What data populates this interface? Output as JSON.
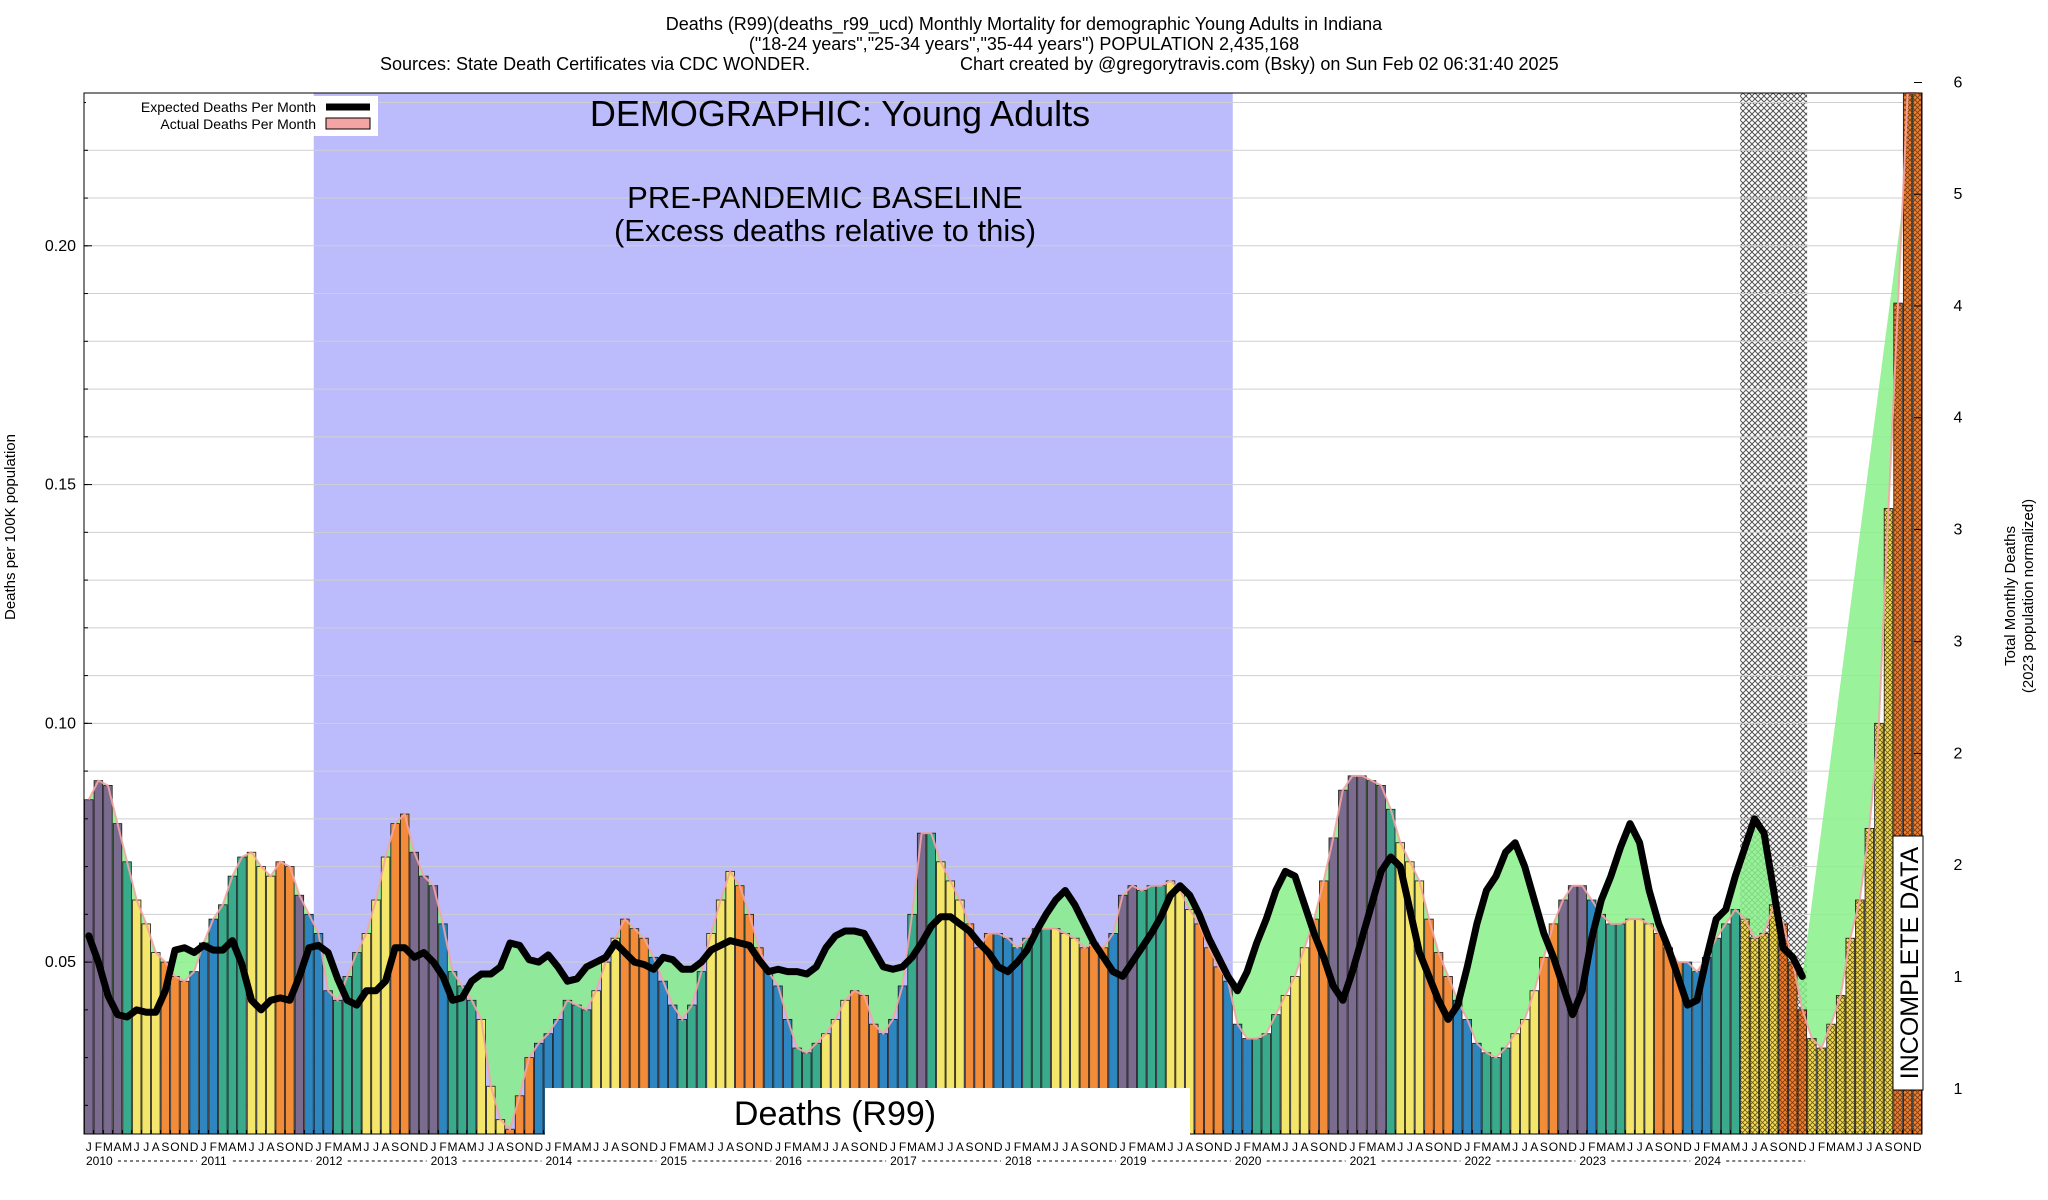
{
  "header": {
    "line1": "Deaths (R99)(deaths_r99_ucd) Monthly Mortality for demographic Young Adults in Indiana",
    "line2": "(\"18-24 years\",\"25-34 years\",\"35-44 years\") POPULATION 2,435,168",
    "line3a": "Sources: State Death Certificates via CDC WONDER.",
    "line3b": "Chart created by @gregorytravis.com (Bsky) on Sun Feb 02 06:31:40 2025"
  },
  "annotations": {
    "demographic": "DEMOGRAPHIC: Young Adults",
    "baseline1": "PRE-PANDEMIC BASELINE",
    "baseline2": "(Excess deaths relative to this)",
    "cause": "Deaths (R99)",
    "incomplete": "INCOMPLETE DATA"
  },
  "legend": {
    "expected": "Expected Deaths Per Month",
    "actual": "Actual Deaths Per Month"
  },
  "colors": {
    "baseline_shade": "#bcbcfc",
    "excess_fill": "#88f088",
    "deficit_fill": "#88f088",
    "expected_line": "#000000",
    "actual_area": "#f4a4a4",
    "winter": "#2e86c1",
    "spring": "#3aaa8c",
    "summer": "#f4e66a",
    "fall": "#f28c38",
    "mixed": "#7b6b8e"
  },
  "chart_data": {
    "type": "bar",
    "title": "Deaths (R99)(deaths_r99_ucd) Monthly Mortality for demographic Young Adults in Indiana",
    "ylabel": "Deaths per 100K population",
    "y2label": "Total Monthly Deaths",
    "y2sublabel": "(2023 population normalized)",
    "ylim": [
      0.014,
      0.232
    ],
    "y_ticks": [
      "0.05",
      "0.10",
      "0.15",
      "0.20"
    ],
    "y_tick_values": [
      0.05,
      0.1,
      0.15,
      0.2
    ],
    "y2_ticks": [
      "1",
      "1",
      "2",
      "2",
      "3",
      "3",
      "4",
      "4",
      "5",
      "6"
    ],
    "y2_tick_values": [
      0.0234,
      0.0469,
      0.0703,
      0.0937,
      0.1171,
      0.1406,
      0.164,
      0.1874,
      0.2108,
      0.2342
    ],
    "years": [
      "2010",
      "2011",
      "2012",
      "2013",
      "2014",
      "2015",
      "2016",
      "2017",
      "2018",
      "2019",
      "2020",
      "2021",
      "2022",
      "2023",
      "2024"
    ],
    "month_letters": [
      "J",
      "F",
      "M",
      "A",
      "M",
      "J",
      "J",
      "A",
      "S",
      "O",
      "N",
      "D"
    ],
    "baseline_period": [
      "2012-01",
      "2019-12"
    ],
    "incomplete_period": [
      "2024-06",
      "2024-12"
    ],
    "grid": true,
    "legend_position": "top-left",
    "actual": [
      0.084,
      0.088,
      0.087,
      0.079,
      0.071,
      0.063,
      0.058,
      0.052,
      0.05,
      0.047,
      0.046,
      0.048,
      0.054,
      0.059,
      0.062,
      0.068,
      0.072,
      0.073,
      0.07,
      0.068,
      0.071,
      0.07,
      0.064,
      0.06,
      0.056,
      0.044,
      0.042,
      0.047,
      0.052,
      0.056,
      0.063,
      0.072,
      0.079,
      0.081,
      0.073,
      0.068,
      0.066,
      0.058,
      0.048,
      0.045,
      0.042,
      0.038,
      0.024,
      0.017,
      0.015,
      0.022,
      0.03,
      0.033,
      0.035,
      0.038,
      0.042,
      0.041,
      0.04,
      0.044,
      0.05,
      0.055,
      0.059,
      0.057,
      0.055,
      0.051,
      0.046,
      0.041,
      0.038,
      0.041,
      0.048,
      0.056,
      0.063,
      0.069,
      0.066,
      0.06,
      0.053,
      0.048,
      0.045,
      0.038,
      0.032,
      0.031,
      0.033,
      0.035,
      0.038,
      0.042,
      0.044,
      0.043,
      0.037,
      0.035,
      0.038,
      0.045,
      0.06,
      0.077,
      0.077,
      0.071,
      0.067,
      0.063,
      0.058,
      0.053,
      0.056,
      0.056,
      0.055,
      0.053,
      0.055,
      0.057,
      0.057,
      0.057,
      0.056,
      0.055,
      0.053,
      0.054,
      0.053,
      0.056,
      0.064,
      0.066,
      0.065,
      0.066,
      0.066,
      0.067,
      0.065,
      0.061,
      0.058,
      0.053,
      0.049,
      0.046,
      0.037,
      0.034,
      0.034,
      0.035,
      0.039,
      0.043,
      0.047,
      0.053,
      0.059,
      0.067,
      0.076,
      0.086,
      0.089,
      0.089,
      0.088,
      0.087,
      0.082,
      0.075,
      0.071,
      0.067,
      0.059,
      0.052,
      0.047,
      0.042,
      0.038,
      0.033,
      0.031,
      0.03,
      0.032,
      0.035,
      0.038,
      0.044,
      0.051,
      0.058,
      0.063,
      0.066,
      0.066,
      0.063,
      0.06,
      0.058,
      0.058,
      0.059,
      0.059,
      0.058,
      0.056,
      0.053,
      0.05,
      0.05,
      0.048,
      0.051,
      0.055,
      0.058,
      0.061,
      0.059,
      0.055,
      0.056,
      0.062,
      0.058,
      0.05,
      0.04,
      0.034,
      0.032,
      0.037,
      0.043,
      0.055,
      0.063,
      0.078,
      0.1,
      0.145,
      0.188,
      0.232,
      0.232
    ],
    "expected": [
      0.0555,
      0.05,
      0.043,
      0.039,
      0.0385,
      0.04,
      0.0395,
      0.0395,
      0.044,
      0.0525,
      0.053,
      0.052,
      0.0535,
      0.0525,
      0.0525,
      0.0545,
      0.0495,
      0.042,
      0.04,
      0.042,
      0.0425,
      0.042,
      0.047,
      0.053,
      0.0535,
      0.052,
      0.0465,
      0.042,
      0.041,
      0.044,
      0.044,
      0.046,
      0.053,
      0.053,
      0.051,
      0.052,
      0.05,
      0.047,
      0.042,
      0.0425,
      0.046,
      0.0475,
      0.0475,
      0.049,
      0.054,
      0.0535,
      0.0505,
      0.05,
      0.0515,
      0.049,
      0.046,
      0.0465,
      0.049,
      0.05,
      0.051,
      0.054,
      0.052,
      0.05,
      0.0495,
      0.0485,
      0.051,
      0.0505,
      0.0485,
      0.0485,
      0.05,
      0.0525,
      0.0535,
      0.0545,
      0.054,
      0.0535,
      0.0505,
      0.048,
      0.0485,
      0.048,
      0.048,
      0.0475,
      0.049,
      0.053,
      0.0555,
      0.0565,
      0.0565,
      0.056,
      0.0525,
      0.049,
      0.0485,
      0.049,
      0.051,
      0.054,
      0.0575,
      0.0595,
      0.0595,
      0.058,
      0.0565,
      0.054,
      0.052,
      0.049,
      0.048,
      0.05,
      0.0525,
      0.0565,
      0.06,
      0.063,
      0.065,
      0.062,
      0.058,
      0.054,
      0.051,
      0.048,
      0.047,
      0.05,
      0.053,
      0.056,
      0.0595,
      0.064,
      0.066,
      0.064,
      0.06,
      0.055,
      0.051,
      0.047,
      0.044,
      0.048,
      0.054,
      0.059,
      0.065,
      0.069,
      0.068,
      0.062,
      0.056,
      0.051,
      0.045,
      0.042,
      0.048,
      0.055,
      0.062,
      0.069,
      0.072,
      0.07,
      0.061,
      0.052,
      0.047,
      0.042,
      0.038,
      0.041,
      0.049,
      0.058,
      0.065,
      0.068,
      0.073,
      0.075,
      0.07,
      0.063,
      0.056,
      0.051,
      0.045,
      0.039,
      0.044,
      0.055,
      0.063,
      0.068,
      0.074,
      0.079,
      0.075,
      0.065,
      0.058,
      0.053,
      0.047,
      0.041,
      0.042,
      0.051,
      0.059,
      0.061,
      0.068,
      0.074,
      0.08,
      0.077,
      0.065,
      0.053,
      0.051,
      0.047
    ]
  }
}
